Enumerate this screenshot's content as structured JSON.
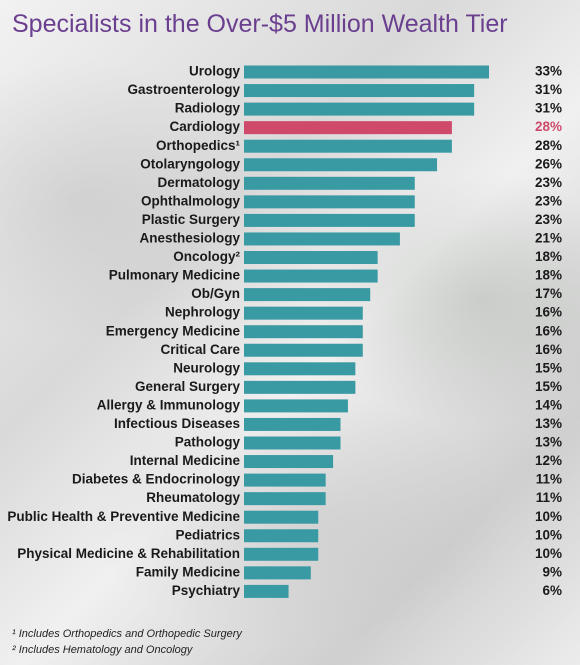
{
  "header": {
    "title": "Specialists in the Over-$5 Million Wealth Tier"
  },
  "chart_data": {
    "type": "bar",
    "orientation": "horizontal",
    "title": "Specialists in the Over-$5 Million Wealth Tier",
    "xlim": [
      0,
      35
    ],
    "categories": [
      "Urology",
      "Gastroenterology",
      "Radiology",
      "Cardiology",
      "Orthopedics¹",
      "Otolaryngology",
      "Dermatology",
      "Ophthalmology",
      "Plastic Surgery",
      "Anesthesiology",
      "Oncology²",
      "Pulmonary Medicine",
      "Ob/Gyn",
      "Nephrology",
      "Emergency Medicine",
      "Critical Care",
      "Neurology",
      "General Surgery",
      "Allergy & Immunology",
      "Infectious Diseases",
      "Pathology",
      "Internal Medicine",
      "Diabetes & Endocrinology",
      "Rheumatology",
      "Public Health & Preventive Medicine",
      "Pediatrics",
      "Physical Medicine & Rehabilitation",
      "Family Medicine",
      "Psychiatry"
    ],
    "values": [
      33,
      31,
      31,
      28,
      28,
      26,
      23,
      23,
      23,
      21,
      18,
      18,
      17,
      16,
      16,
      16,
      15,
      15,
      14,
      13,
      13,
      12,
      11,
      11,
      10,
      10,
      10,
      9,
      6
    ],
    "value_labels": [
      "33%",
      "31%",
      "31%",
      "28%",
      "28%",
      "26%",
      "23%",
      "23%",
      "23%",
      "21%",
      "18%",
      "18%",
      "17%",
      "16%",
      "16%",
      "16%",
      "15%",
      "15%",
      "14%",
      "13%",
      "13%",
      "12%",
      "11%",
      "11%",
      "10%",
      "10%",
      "10%",
      "9%",
      "6%"
    ],
    "highlight_category": "Cardiology",
    "colors": {
      "bar": "#3a9aa3",
      "highlight": "#cf4a6a",
      "title": "#6b3f8f",
      "highlight_text": "#cf4a6a"
    }
  },
  "footnotes": [
    "¹ Includes Orthopedics and Orthopedic Surgery",
    "² Includes Hematology and Oncology"
  ]
}
